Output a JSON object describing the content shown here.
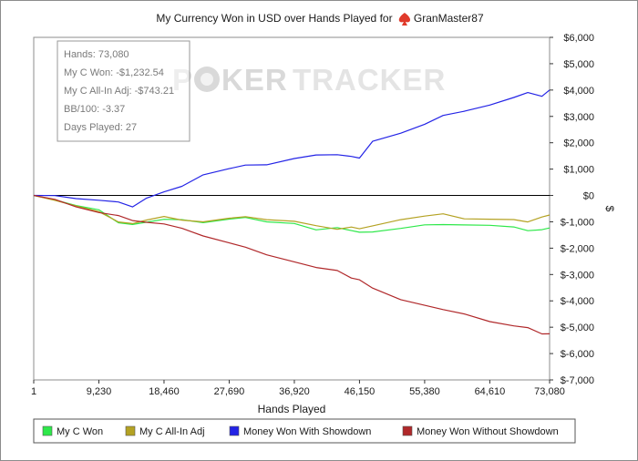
{
  "app": {
    "title": "My Currency Won in USD over Hands Played for",
    "player": "GranMaster87",
    "watermark_left": "P",
    "watermark_mid": "KER",
    "watermark_right": "TRACKER",
    "player_icon": "spade-icon"
  },
  "stats": {
    "hands": "Hands: 73,080",
    "won": "My C Won: -$1,232.54",
    "allin": "My C All-In Adj: -$743.21",
    "bb100": "BB/100: -3.37",
    "days": "Days Played: 27"
  },
  "chart_data": {
    "type": "line",
    "title": "My Currency Won in USD over Hands Played for GranMaster87",
    "xlabel": "Hands Played",
    "ylabel": "$",
    "xlim": [
      1,
      73080
    ],
    "ylim": [
      -7000,
      6000
    ],
    "x_ticks": [
      1,
      9230,
      18460,
      27690,
      36920,
      46150,
      55380,
      64610,
      73080
    ],
    "x_tick_labels": [
      "1",
      "9,230",
      "18,460",
      "27,690",
      "36,920",
      "46,150",
      "55,380",
      "64,610",
      "73,080"
    ],
    "y_ticks": [
      6000,
      5000,
      4000,
      3000,
      2000,
      1000,
      0,
      -1000,
      -2000,
      -3000,
      -4000,
      -5000,
      -6000,
      -7000
    ],
    "y_tick_labels": [
      "$6,000",
      "$5,000",
      "$4,000",
      "$3,000",
      "$2,000",
      "$1,000",
      "$0",
      "$-1,000",
      "$-2,000",
      "$-3,000",
      "$-4,000",
      "$-5,000",
      "$-6,000",
      "$-7,000"
    ],
    "grid": false,
    "legend_position": "bottom",
    "x": [
      1,
      3000,
      6000,
      9230,
      12000,
      14000,
      16000,
      18460,
      21000,
      24000,
      27690,
      30000,
      33000,
      36920,
      40000,
      43000,
      45000,
      46150,
      48000,
      52000,
      55380,
      58000,
      61000,
      64610,
      68000,
      70000,
      72000,
      73080
    ],
    "series": [
      {
        "name": "My C Won",
        "color": "#2ee84a",
        "values": [
          0,
          -150,
          -400,
          -600,
          -1000,
          -1100,
          -1050,
          -850,
          -900,
          -1050,
          -950,
          -800,
          -1000,
          -1100,
          -1250,
          -1200,
          -1350,
          -1450,
          -1350,
          -1250,
          -1150,
          -1050,
          -1100,
          -1150,
          -1250,
          -1300,
          -1300,
          -1232.54
        ]
      },
      {
        "name": "My C All-In Adj",
        "color": "#b4a223",
        "values": [
          0,
          -150,
          -400,
          -650,
          -950,
          -1050,
          -950,
          -850,
          -900,
          -1000,
          -900,
          -750,
          -900,
          -1000,
          -1200,
          -1250,
          -1200,
          -1300,
          -1100,
          -900,
          -800,
          -750,
          -850,
          -900,
          -950,
          -950,
          -800,
          -743.21
        ]
      },
      {
        "name": "Money Won With Showdown",
        "color": "#2323e6",
        "values": [
          0,
          50,
          -100,
          -200,
          -300,
          -400,
          -100,
          100,
          400,
          800,
          1000,
          1100,
          1200,
          1400,
          1500,
          1600,
          1500,
          1400,
          2000,
          2400,
          2700,
          3000,
          3250,
          3450,
          3700,
          3850,
          3800,
          4000
        ]
      },
      {
        "name": "Money Won Without Showdown",
        "color": "#b0282a",
        "values": [
          0,
          -200,
          -400,
          -650,
          -800,
          -900,
          -1000,
          -1100,
          -1300,
          -1500,
          -1800,
          -2000,
          -2200,
          -2500,
          -2750,
          -2900,
          -3100,
          -3200,
          -3550,
          -3900,
          -4150,
          -4350,
          -4550,
          -4750,
          -4950,
          -5050,
          -5200,
          -5250
        ]
      }
    ]
  }
}
